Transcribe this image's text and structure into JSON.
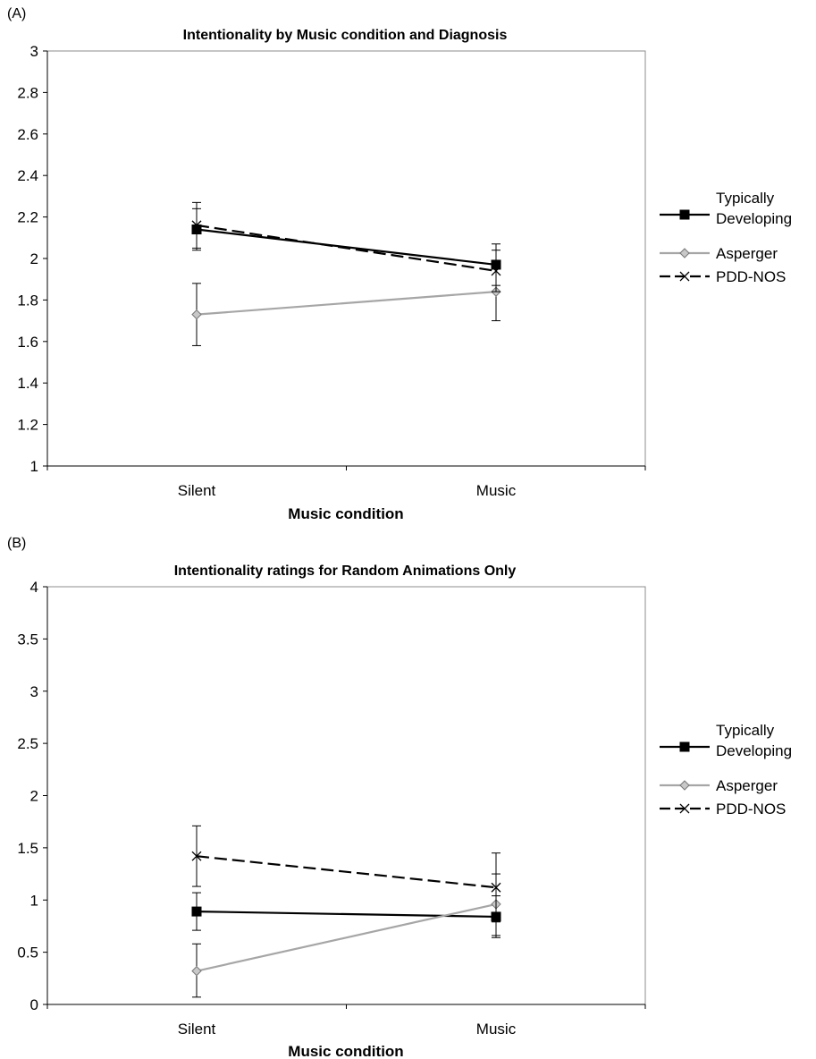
{
  "chart_data": [
    {
      "type": "line",
      "panel_label": "(A)",
      "title": "Intentionality by Music condition and Diagnosis",
      "xlabel": "Music condition",
      "ylabel": "",
      "categories": [
        "Silent",
        "Music"
      ],
      "ylim": [
        1,
        3
      ],
      "yticks": [
        "1",
        "1.2",
        "1.4",
        "1.6",
        "1.8",
        "2",
        "2.2",
        "2.4",
        "2.6",
        "2.8",
        "3"
      ],
      "ytick_values": [
        1,
        1.2,
        1.4,
        1.6,
        1.8,
        2,
        2.2,
        2.4,
        2.6,
        2.8,
        3
      ],
      "grid": false,
      "legend_position": "right",
      "series": [
        {
          "name": "Typically Developing",
          "name_lines": [
            "Typically",
            "Developing"
          ],
          "values": [
            2.14,
            1.97
          ],
          "err_low": [
            2.04,
            1.87
          ],
          "err_high": [
            2.24,
            2.07
          ],
          "color": "#000000",
          "marker": "square",
          "dash": "none"
        },
        {
          "name": "Asperger",
          "name_lines": [
            "Asperger"
          ],
          "values": [
            1.73,
            1.84
          ],
          "err_low": [
            1.58,
            1.7
          ],
          "err_high": [
            1.88,
            1.98
          ],
          "color": "#a6a6a6",
          "marker": "diamond",
          "dash": "none"
        },
        {
          "name": "PDD-NOS",
          "name_lines": [
            "PDD-NOS"
          ],
          "values": [
            2.16,
            1.94
          ],
          "err_low": [
            2.05,
            1.84
          ],
          "err_high": [
            2.27,
            2.04
          ],
          "color": "#000000",
          "marker": "x",
          "dash": "dashed"
        }
      ]
    },
    {
      "type": "line",
      "panel_label": "(B)",
      "title": "Intentionality ratings for Random Animations Only",
      "xlabel": "Music condition",
      "ylabel": "",
      "categories": [
        "Silent",
        "Music"
      ],
      "ylim": [
        0,
        4
      ],
      "yticks": [
        "0",
        "0.5",
        "1",
        "1.5",
        "2",
        "2.5",
        "3",
        "3.5",
        "4"
      ],
      "ytick_values": [
        0,
        0.5,
        1,
        1.5,
        2,
        2.5,
        3,
        3.5,
        4
      ],
      "grid": false,
      "legend_position": "right",
      "series": [
        {
          "name": "Typically Developing",
          "name_lines": [
            "Typically",
            "Developing"
          ],
          "values": [
            0.89,
            0.84
          ],
          "err_low": [
            0.71,
            0.64
          ],
          "err_high": [
            1.07,
            1.04
          ],
          "color": "#000000",
          "marker": "square",
          "dash": "none"
        },
        {
          "name": "Asperger",
          "name_lines": [
            "Asperger"
          ],
          "values": [
            0.32,
            0.96
          ],
          "err_low": [
            0.07,
            0.66
          ],
          "err_high": [
            0.58,
            1.25
          ],
          "color": "#a6a6a6",
          "marker": "diamond",
          "dash": "none"
        },
        {
          "name": "PDD-NOS",
          "name_lines": [
            "PDD-NOS"
          ],
          "values": [
            1.42,
            1.12
          ],
          "err_low": [
            1.13,
            0.79
          ],
          "err_high": [
            1.71,
            1.45
          ],
          "color": "#000000",
          "marker": "x",
          "dash": "dashed"
        }
      ]
    }
  ]
}
